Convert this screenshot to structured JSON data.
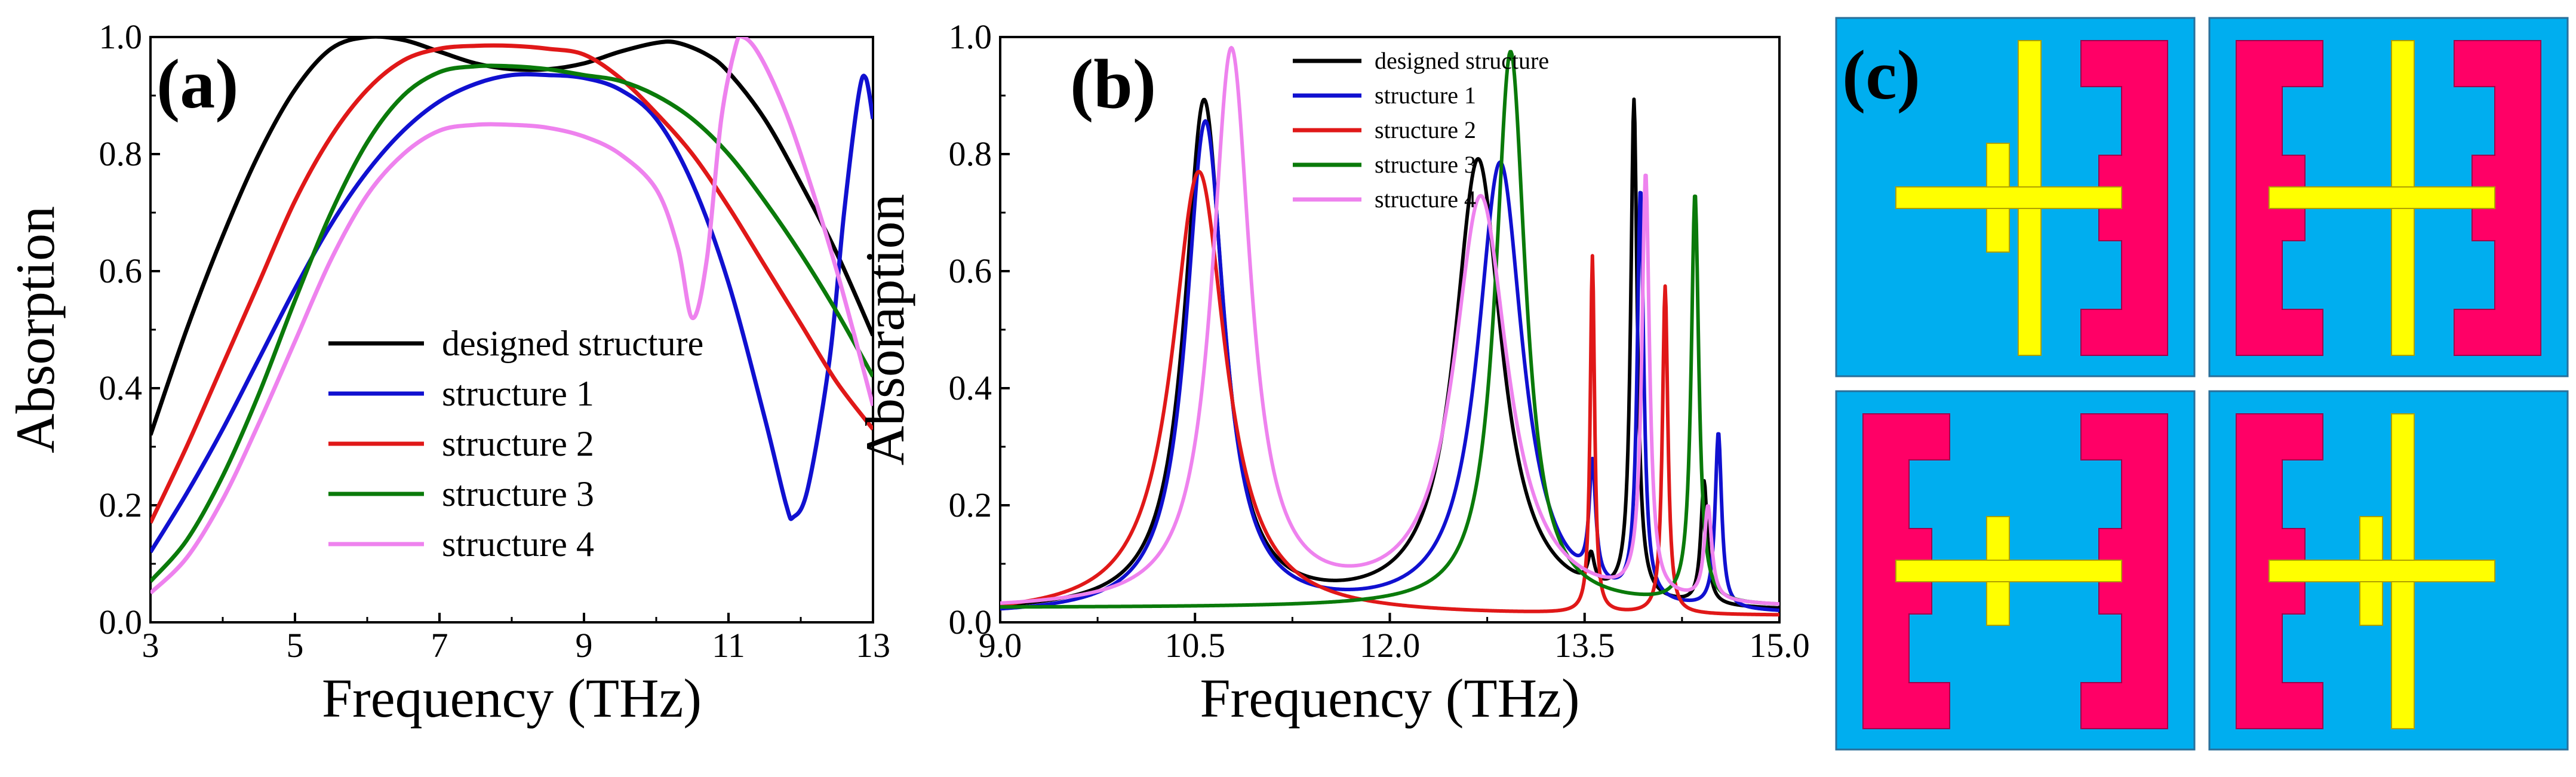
{
  "colors": {
    "designed structure": "#000000",
    "structure 1": "#1010d0",
    "structure 2": "#e01818",
    "structure 3": "#0a7a0a",
    "structure 4": "#ee82ee",
    "cell_bg": "#00aeef",
    "cell_border": "#2a6f9a",
    "resonator": "#ff0066",
    "resonator_border": "#a0004a",
    "bar": "#ffff00",
    "bar_border": "#b0a000"
  },
  "chart_data": [
    {
      "panel": "(a)",
      "type": "line",
      "xlabel": "Frequency (THz)",
      "ylabel": "Absorption",
      "xlim": [
        3,
        13
      ],
      "ylim": [
        0,
        1
      ],
      "xticks": [
        "3",
        "5",
        "7",
        "9",
        "11",
        "13"
      ],
      "yticks": [
        "0.0",
        "0.2",
        "0.4",
        "0.6",
        "0.8",
        "1.0"
      ],
      "legend_position": "center-bottom",
      "series": [
        {
          "name": "designed structure",
          "points": [
            [
              3,
              0.32
            ],
            [
              3.5,
              0.5
            ],
            [
              4,
              0.66
            ],
            [
              4.5,
              0.8
            ],
            [
              5,
              0.91
            ],
            [
              5.5,
              0.98
            ],
            [
              6,
              1.0
            ],
            [
              6.5,
              0.995
            ],
            [
              7,
              0.975
            ],
            [
              7.5,
              0.955
            ],
            [
              8,
              0.945
            ],
            [
              8.5,
              0.945
            ],
            [
              9,
              0.955
            ],
            [
              9.5,
              0.975
            ],
            [
              10,
              0.99
            ],
            [
              10.3,
              0.99
            ],
            [
              10.7,
              0.97
            ],
            [
              11,
              0.94
            ],
            [
              11.5,
              0.86
            ],
            [
              12,
              0.75
            ],
            [
              12.5,
              0.63
            ],
            [
              13,
              0.49
            ]
          ]
        },
        {
          "name": "structure 1",
          "points": [
            [
              3,
              0.12
            ],
            [
              3.5,
              0.22
            ],
            [
              4,
              0.33
            ],
            [
              4.5,
              0.45
            ],
            [
              5,
              0.57
            ],
            [
              5.5,
              0.68
            ],
            [
              6,
              0.77
            ],
            [
              6.5,
              0.84
            ],
            [
              7,
              0.89
            ],
            [
              7.5,
              0.92
            ],
            [
              8,
              0.935
            ],
            [
              8.5,
              0.935
            ],
            [
              9,
              0.93
            ],
            [
              9.5,
              0.91
            ],
            [
              10,
              0.86
            ],
            [
              10.5,
              0.75
            ],
            [
              11,
              0.58
            ],
            [
              11.5,
              0.35
            ],
            [
              11.8,
              0.2
            ],
            [
              11.9,
              0.18
            ],
            [
              12.1,
              0.23
            ],
            [
              12.4,
              0.45
            ],
            [
              12.6,
              0.7
            ],
            [
              12.8,
              0.9
            ],
            [
              12.9,
              0.93
            ],
            [
              13,
              0.86
            ]
          ]
        },
        {
          "name": "structure 2",
          "points": [
            [
              3,
              0.17
            ],
            [
              3.5,
              0.3
            ],
            [
              4,
              0.44
            ],
            [
              4.5,
              0.58
            ],
            [
              5,
              0.72
            ],
            [
              5.5,
              0.83
            ],
            [
              6,
              0.91
            ],
            [
              6.5,
              0.96
            ],
            [
              7,
              0.98
            ],
            [
              7.5,
              0.985
            ],
            [
              8,
              0.985
            ],
            [
              8.5,
              0.98
            ],
            [
              9,
              0.97
            ],
            [
              9.5,
              0.93
            ],
            [
              10,
              0.87
            ],
            [
              10.5,
              0.8
            ],
            [
              11,
              0.71
            ],
            [
              11.5,
              0.61
            ],
            [
              12,
              0.51
            ],
            [
              12.5,
              0.41
            ],
            [
              13,
              0.33
            ]
          ]
        },
        {
          "name": "structure 3",
          "points": [
            [
              3,
              0.07
            ],
            [
              3.5,
              0.14
            ],
            [
              4,
              0.25
            ],
            [
              4.5,
              0.39
            ],
            [
              5,
              0.55
            ],
            [
              5.5,
              0.7
            ],
            [
              6,
              0.82
            ],
            [
              6.5,
              0.9
            ],
            [
              7,
              0.94
            ],
            [
              7.5,
              0.95
            ],
            [
              8,
              0.95
            ],
            [
              8.5,
              0.945
            ],
            [
              9,
              0.935
            ],
            [
              9.5,
              0.925
            ],
            [
              10,
              0.9
            ],
            [
              10.5,
              0.86
            ],
            [
              11,
              0.8
            ],
            [
              11.5,
              0.72
            ],
            [
              12,
              0.63
            ],
            [
              12.5,
              0.53
            ],
            [
              13,
              0.42
            ]
          ]
        },
        {
          "name": "structure 4",
          "points": [
            [
              3,
              0.05
            ],
            [
              3.5,
              0.11
            ],
            [
              4,
              0.21
            ],
            [
              4.5,
              0.34
            ],
            [
              5,
              0.48
            ],
            [
              5.5,
              0.62
            ],
            [
              6,
              0.73
            ],
            [
              6.5,
              0.8
            ],
            [
              7,
              0.84
            ],
            [
              7.5,
              0.85
            ],
            [
              8,
              0.85
            ],
            [
              8.5,
              0.845
            ],
            [
              9,
              0.83
            ],
            [
              9.5,
              0.8
            ],
            [
              10,
              0.74
            ],
            [
              10.3,
              0.64
            ],
            [
              10.5,
              0.52
            ],
            [
              10.7,
              0.62
            ],
            [
              10.9,
              0.86
            ],
            [
              11.1,
              0.985
            ],
            [
              11.2,
              1.0
            ],
            [
              11.4,
              0.975
            ],
            [
              11.7,
              0.9
            ],
            [
              12,
              0.8
            ],
            [
              12.5,
              0.6
            ],
            [
              13,
              0.37
            ]
          ]
        }
      ]
    },
    {
      "panel": "(b)",
      "type": "line",
      "xlabel": "Frequency (THz)",
      "ylabel": "Absoraption",
      "xlim": [
        9,
        15
      ],
      "ylim": [
        0,
        1
      ],
      "xticks": [
        "9.0",
        "10.5",
        "12.0",
        "13.5",
        "15.0"
      ],
      "yticks": [
        "0.0",
        "0.2",
        "0.4",
        "0.6",
        "0.8",
        "1.0"
      ],
      "legend_position": "top-center",
      "series": [
        {
          "name": "designed structure",
          "peaks": [
            {
              "f0": 10.57,
              "w": 0.36,
              "a": 0.87
            },
            {
              "f0": 12.68,
              "w": 0.44,
              "a": 0.77
            },
            {
              "f0": 13.88,
              "w": 0.06,
              "a": 0.85
            },
            {
              "f0": 14.42,
              "w": 0.06,
              "a": 0.21
            },
            {
              "f0": 13.55,
              "w": 0.06,
              "a": 0.05
            }
          ],
          "baseline": 0.015
        },
        {
          "name": "structure 1",
          "peaks": [
            {
              "f0": 10.58,
              "w": 0.36,
              "a": 0.84
            },
            {
              "f0": 12.85,
              "w": 0.42,
              "a": 0.77
            },
            {
              "f0": 13.93,
              "w": 0.06,
              "a": 0.7
            },
            {
              "f0": 14.53,
              "w": 0.06,
              "a": 0.3
            },
            {
              "f0": 13.56,
              "w": 0.06,
              "a": 0.2
            }
          ],
          "baseline": 0.01
        },
        {
          "name": "structure 2",
          "peaks": [
            {
              "f0": 10.53,
              "w": 0.5,
              "a": 0.76
            },
            {
              "f0": 13.56,
              "w": 0.04,
              "a": 0.61
            },
            {
              "f0": 14.12,
              "w": 0.05,
              "a": 0.56
            }
          ],
          "baseline": 0.01
        },
        {
          "name": "structure 3",
          "peaks": [
            {
              "f0": 12.93,
              "w": 0.28,
              "a": 0.95
            },
            {
              "f0": 14.35,
              "w": 0.07,
              "a": 0.7
            }
          ],
          "baseline": 0.025
        },
        {
          "name": "structure 4",
          "peaks": [
            {
              "f0": 10.78,
              "w": 0.36,
              "a": 0.95
            },
            {
              "f0": 12.7,
              "w": 0.5,
              "a": 0.7
            },
            {
              "f0": 13.97,
              "w": 0.07,
              "a": 0.72
            },
            {
              "f0": 14.45,
              "w": 0.07,
              "a": 0.16
            }
          ],
          "baseline": 0.02
        }
      ]
    }
  ],
  "panel_c": {
    "label": "(c)",
    "cells": [
      {
        "name": "designed structure",
        "resonators": [
          "right"
        ],
        "main_bar": true,
        "short_bar": true,
        "horizontal_bar": true
      },
      {
        "name": "structure 1",
        "resonators": [
          "left",
          "right"
        ],
        "main_bar": true,
        "short_bar": false,
        "horizontal_bar": true
      },
      {
        "name": "structure 2",
        "resonators": [
          "left",
          "right"
        ],
        "main_bar": false,
        "short_bar": true,
        "horizontal_bar": true
      },
      {
        "name": "structure 3",
        "resonators": [
          "left"
        ],
        "main_bar": true,
        "short_bar": true,
        "horizontal_bar": true
      }
    ]
  }
}
